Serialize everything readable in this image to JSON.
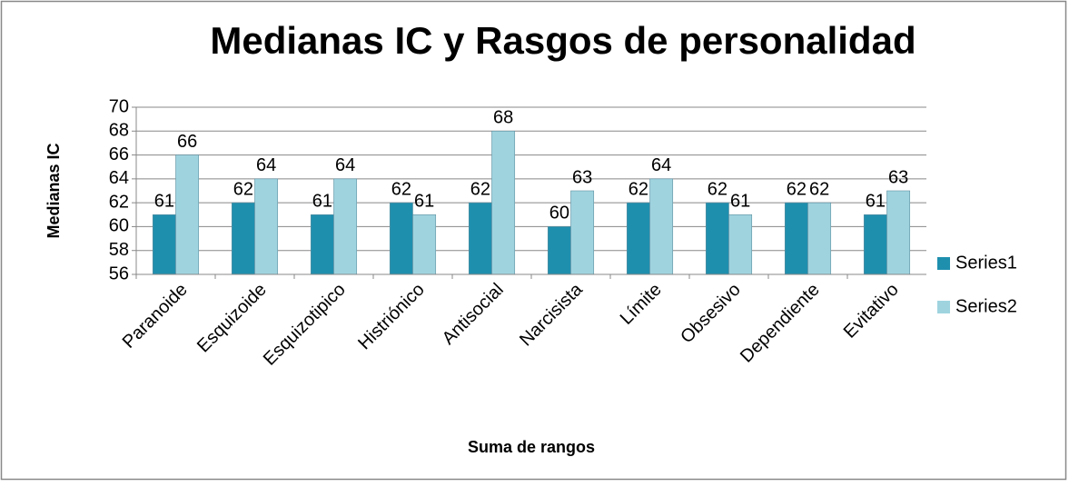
{
  "chart_data": {
    "type": "bar",
    "title": "Medianas IC y Rasgos de personalidad",
    "x_label": "Suma de rangos",
    "y_label": "Medianas IC",
    "categories": [
      "Paranoide",
      "Esquizoide",
      "Esquizotipico",
      "Histriónico",
      "Antisocial",
      "Narcisista",
      "Límite",
      "Obsesivo",
      "Dependiente",
      "Evitativo"
    ],
    "series": [
      {
        "name": "Series1",
        "color": "#1f8fae",
        "values": [
          61,
          62,
          61,
          62,
          62,
          60,
          62,
          62,
          62,
          61
        ]
      },
      {
        "name": "Series2",
        "color": "#9fd4df",
        "values": [
          66,
          64,
          64,
          61,
          68,
          63,
          64,
          61,
          62,
          63
        ]
      }
    ],
    "ylim": [
      56,
      70
    ],
    "yticks": [
      56,
      58,
      60,
      62,
      64,
      66,
      68,
      70
    ],
    "grid": true,
    "legend": "right"
  }
}
